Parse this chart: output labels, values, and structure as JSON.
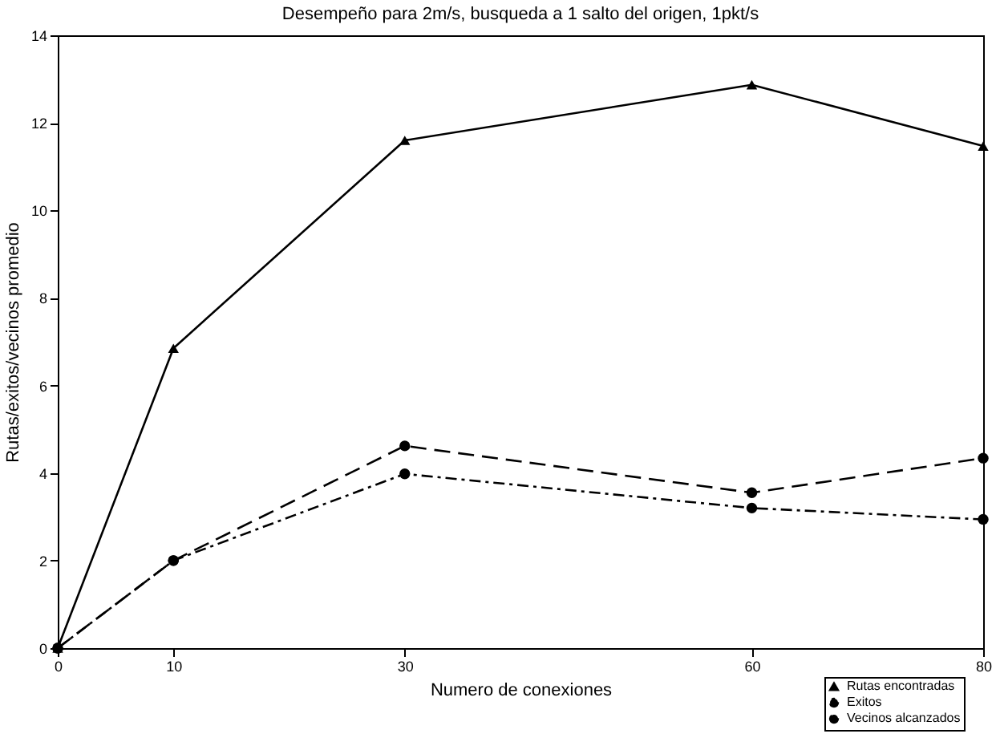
{
  "chart_data": {
    "type": "line",
    "title": "Desempeño para 2m/s, busqueda a 1 salto del origen, 1pkt/s",
    "xlabel": "Numero de conexiones",
    "ylabel": "Rutas/exitos/vecinos promedio",
    "x": [
      0,
      10,
      30,
      60,
      80
    ],
    "series": [
      {
        "name": "Rutas encontradas",
        "color": "#000000",
        "values": [
          0,
          6.85,
          11.6,
          12.87,
          11.47
        ],
        "marker": "triangle",
        "line_style": "solid"
      },
      {
        "name": "Exitos",
        "color": "#000000",
        "values": [
          0,
          2.0,
          3.98,
          3.2,
          2.94
        ],
        "marker": "circle",
        "line_style": "dotted"
      },
      {
        "name": "Vecinos alcanzados",
        "color": "#000000",
        "values": [
          0,
          2.0,
          4.62,
          3.55,
          4.34
        ],
        "marker": "circle",
        "line_style": "dashed"
      }
    ],
    "xlim": [
      0,
      80
    ],
    "xticks": [
      0,
      10,
      30,
      60,
      80
    ],
    "ylim": [
      0,
      14
    ],
    "yticks": [
      0,
      2,
      4,
      6,
      8,
      10,
      12,
      14
    ],
    "grid": false,
    "legend": "bottom right"
  }
}
